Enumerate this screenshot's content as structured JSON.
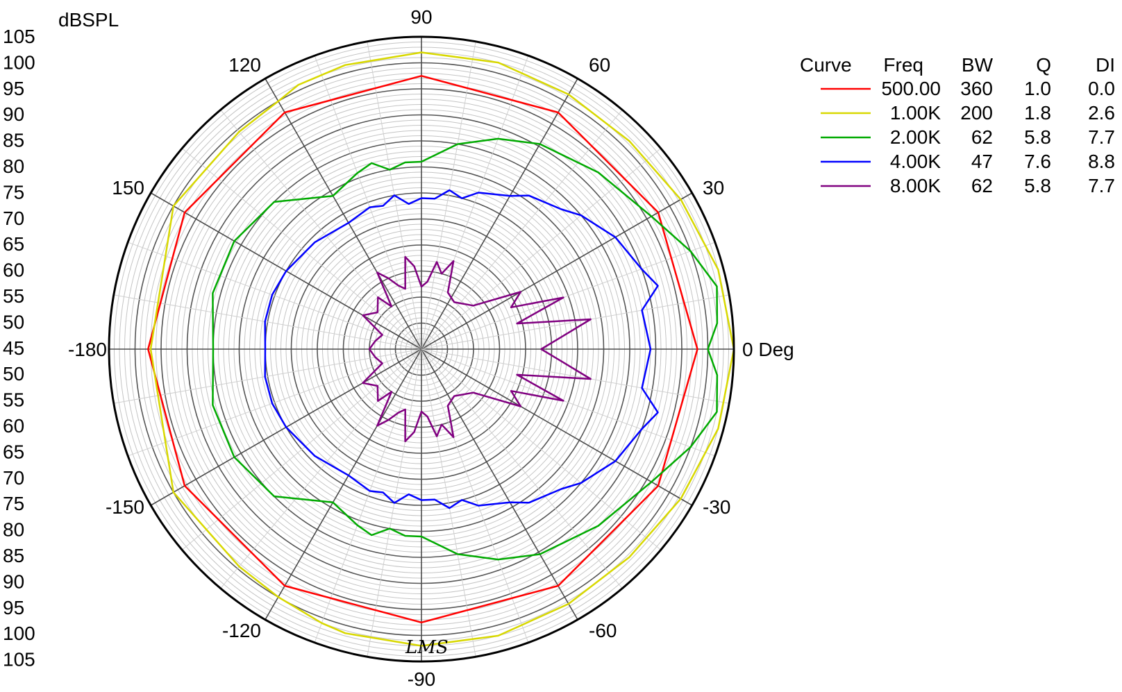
{
  "chart_data": {
    "type": "polar",
    "ylabel": "dBSPL",
    "angle_unit_label": "Deg",
    "radial_range": [
      45,
      105
    ],
    "radial_tick_labels": [
      "105",
      "100",
      "95",
      "90",
      "85",
      "80",
      "75",
      "70",
      "65",
      "60",
      "55",
      "50",
      "45",
      "50",
      "55",
      "60",
      "65",
      "70",
      "75",
      "80",
      "85",
      "90",
      "95",
      "100",
      "105"
    ],
    "angle_labels": [
      {
        "angle": 0,
        "text": "0 Deg"
      },
      {
        "angle": 30,
        "text": "30"
      },
      {
        "angle": 60,
        "text": "60"
      },
      {
        "angle": 90,
        "text": "90"
      },
      {
        "angle": 120,
        "text": "120"
      },
      {
        "angle": 150,
        "text": "150"
      },
      {
        "angle": 180,
        "text": "-180"
      },
      {
        "angle": -150,
        "text": "-150"
      },
      {
        "angle": -120,
        "text": "-120"
      },
      {
        "angle": -90,
        "text": "-90"
      },
      {
        "angle": -60,
        "text": "-60"
      },
      {
        "angle": -30,
        "text": "-30"
      }
    ],
    "watermark": "LMS",
    "legend": {
      "headers": [
        "Curve",
        "Freq",
        "BW",
        "Q",
        "DI"
      ],
      "rows": [
        {
          "freq": "500.00",
          "bw": "360",
          "q": "1.0",
          "di": "0.0",
          "color": "#ff0000"
        },
        {
          "freq": "1.00K",
          "bw": "200",
          "q": "1.8",
          "di": "2.6",
          "color": "#d8d800"
        },
        {
          "freq": "2.00K",
          "bw": "62",
          "q": "5.8",
          "di": "7.7",
          "color": "#00aa00"
        },
        {
          "freq": "4.00K",
          "bw": "47",
          "q": "7.6",
          "di": "8.8",
          "color": "#0000ff"
        },
        {
          "freq": "8.00K",
          "bw": "62",
          "q": "5.8",
          "di": "7.7",
          "color": "#800080"
        }
      ]
    },
    "series": [
      {
        "name": "500.00",
        "color": "#ff0000",
        "points": [
          [
            0,
            98
          ],
          [
            30,
            97.5
          ],
          [
            60,
            97.5
          ],
          [
            90,
            97.5
          ],
          [
            120,
            97.5
          ],
          [
            150,
            97.5
          ],
          [
            180,
            97.5
          ],
          [
            -150,
            97.5
          ],
          [
            -120,
            97.5
          ],
          [
            -90,
            97.5
          ],
          [
            -60,
            97.5
          ],
          [
            -30,
            97.5
          ]
        ]
      },
      {
        "name": "1.00K",
        "color": "#d8d800",
        "points": [
          [
            0,
            105
          ],
          [
            15,
            104
          ],
          [
            30,
            102.5
          ],
          [
            45,
            101.5
          ],
          [
            60,
            101.5
          ],
          [
            75,
            102
          ],
          [
            90,
            102
          ],
          [
            105,
            101.5
          ],
          [
            115,
            101
          ],
          [
            120,
            100
          ],
          [
            130,
            99.5
          ],
          [
            150,
            100
          ],
          [
            180,
            97
          ],
          [
            -150,
            100
          ],
          [
            -130,
            99.5
          ],
          [
            -120,
            100
          ],
          [
            -110,
            101
          ],
          [
            -105,
            101.5
          ],
          [
            -90,
            102
          ],
          [
            -75,
            102
          ],
          [
            -60,
            101.5
          ],
          [
            -45,
            101.5
          ],
          [
            -30,
            102.5
          ],
          [
            -15,
            104
          ]
        ]
      },
      {
        "name": "2.00K",
        "color": "#00aa00",
        "points": [
          [
            0,
            100
          ],
          [
            5,
            102
          ],
          [
            12,
            103
          ],
          [
            20,
            100
          ],
          [
            30,
            96
          ],
          [
            45,
            93
          ],
          [
            60,
            90.5
          ],
          [
            70,
            88
          ],
          [
            80,
            85
          ],
          [
            90,
            81
          ],
          [
            95,
            81
          ],
          [
            100,
            80
          ],
          [
            105,
            82
          ],
          [
            110,
            81
          ],
          [
            120,
            79
          ],
          [
            135,
            85
          ],
          [
            150,
            86.5
          ],
          [
            165,
            86.5
          ],
          [
            180,
            85
          ],
          [
            -165,
            86.5
          ],
          [
            -150,
            86.5
          ],
          [
            -135,
            85
          ],
          [
            -120,
            79
          ],
          [
            -110,
            81
          ],
          [
            -105,
            82
          ],
          [
            -100,
            80
          ],
          [
            -95,
            81
          ],
          [
            -90,
            81
          ],
          [
            -80,
            85
          ],
          [
            -70,
            88
          ],
          [
            -60,
            90.5
          ],
          [
            -45,
            93
          ],
          [
            -30,
            96
          ],
          [
            -20,
            100
          ],
          [
            -12,
            103
          ],
          [
            -5,
            102
          ]
        ]
      },
      {
        "name": "4.00K",
        "color": "#0000ff",
        "points": [
          [
            0,
            89
          ],
          [
            10,
            88
          ],
          [
            15,
            92
          ],
          [
            20,
            90
          ],
          [
            30,
            88
          ],
          [
            40,
            85
          ],
          [
            45,
            83
          ],
          [
            55,
            81
          ],
          [
            60,
            79
          ],
          [
            70,
            77
          ],
          [
            75,
            75
          ],
          [
            80,
            76
          ],
          [
            85,
            74
          ],
          [
            90,
            74
          ],
          [
            95,
            73
          ],
          [
            100,
            75
          ],
          [
            105,
            73.5
          ],
          [
            110,
            74
          ],
          [
            120,
            73
          ],
          [
            135,
            74
          ],
          [
            150,
            75
          ],
          [
            160,
            75.5
          ],
          [
            170,
            75.5
          ],
          [
            180,
            75
          ],
          [
            -170,
            75.5
          ],
          [
            -160,
            75.5
          ],
          [
            -150,
            75
          ],
          [
            -135,
            74
          ],
          [
            -120,
            73
          ],
          [
            -110,
            74
          ],
          [
            -105,
            73.5
          ],
          [
            -100,
            75
          ],
          [
            -95,
            73
          ],
          [
            -90,
            74
          ],
          [
            -85,
            74
          ],
          [
            -80,
            76
          ],
          [
            -75,
            75
          ],
          [
            -70,
            77
          ],
          [
            -60,
            79
          ],
          [
            -55,
            81
          ],
          [
            -45,
            83
          ],
          [
            -40,
            85
          ],
          [
            -30,
            88
          ],
          [
            -20,
            90
          ],
          [
            -15,
            92
          ],
          [
            -10,
            88
          ]
        ]
      },
      {
        "name": "8.00K",
        "color": "#800080",
        "points": [
          [
            0,
            68
          ],
          [
            5,
            72
          ],
          [
            10,
            78
          ],
          [
            15,
            64
          ],
          [
            20,
            74
          ],
          [
            25,
            64
          ],
          [
            30,
            67
          ],
          [
            40,
            58
          ],
          [
            55,
            56
          ],
          [
            65,
            57
          ],
          [
            70,
            63
          ],
          [
            75,
            60
          ],
          [
            80,
            62
          ],
          [
            85,
            58
          ],
          [
            90,
            57
          ],
          [
            95,
            61
          ],
          [
            100,
            63
          ],
          [
            105,
            57
          ],
          [
            110,
            58
          ],
          [
            115,
            60
          ],
          [
            120,
            62
          ],
          [
            125,
            55
          ],
          [
            130,
            58
          ],
          [
            140,
            56
          ],
          [
            150,
            58
          ],
          [
            160,
            53
          ],
          [
            170,
            54
          ],
          [
            180,
            55
          ],
          [
            -170,
            54
          ],
          [
            -160,
            53
          ],
          [
            -150,
            58
          ],
          [
            -140,
            56
          ],
          [
            -130,
            58
          ],
          [
            -125,
            55
          ],
          [
            -120,
            62
          ],
          [
            -115,
            60
          ],
          [
            -110,
            58
          ],
          [
            -105,
            57
          ],
          [
            -100,
            63
          ],
          [
            -95,
            61
          ],
          [
            -90,
            57
          ],
          [
            -85,
            58
          ],
          [
            -80,
            62
          ],
          [
            -75,
            60
          ],
          [
            -70,
            63
          ],
          [
            -65,
            57
          ],
          [
            -55,
            56
          ],
          [
            -40,
            58
          ],
          [
            -30,
            67
          ],
          [
            -25,
            64
          ],
          [
            -20,
            74
          ],
          [
            -15,
            64
          ],
          [
            -10,
            78
          ],
          [
            -5,
            72
          ]
        ]
      }
    ]
  }
}
